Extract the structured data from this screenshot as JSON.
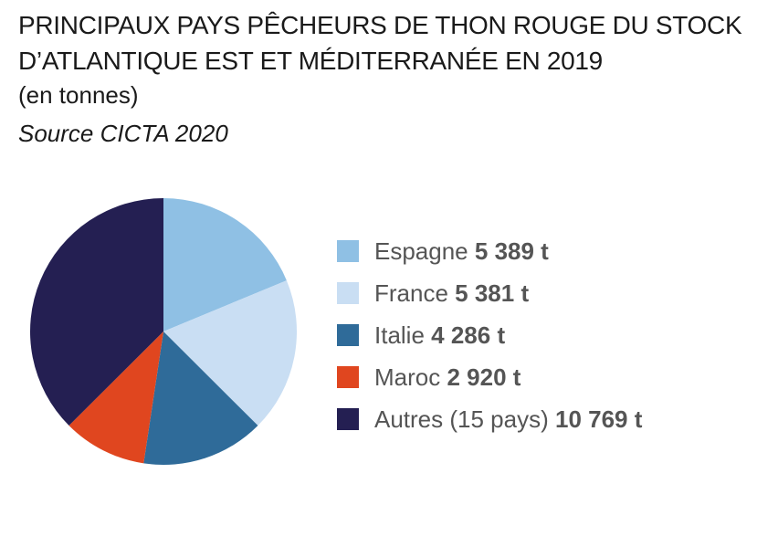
{
  "title": "PRINCIPAUX PAYS PÊCHEURS DE THON ROUGE DU STOCK D’ATLANTIQUE EST ET MÉDITERRANÉE EN 2019",
  "subtitle": "(en tonnes)",
  "source": "Source CICTA 2020",
  "chart_data": {
    "type": "pie",
    "title": "PRINCIPAUX PAYS PÊCHEURS DE THON ROUGE DU STOCK D’ATLANTIQUE EST ET MÉDITERRANÉE EN 2019",
    "unit": "t",
    "slices": [
      {
        "name": "Espagne",
        "value": 5389,
        "value_label": "5 389 t",
        "color": "#8fc0e4"
      },
      {
        "name": "France",
        "value": 5381,
        "value_label": "5 381 t",
        "color": "#c9def3"
      },
      {
        "name": "Italie",
        "value": 4286,
        "value_label": "4 286 t",
        "color": "#2f6b99"
      },
      {
        "name": "Maroc",
        "value": 2920,
        "value_label": "2 920 t",
        "color": "#e0461f"
      },
      {
        "name": "Autres (15 pays)",
        "value": 10769,
        "value_label": "10 769 t",
        "color": "#241f52"
      }
    ],
    "legend_position": "right"
  }
}
